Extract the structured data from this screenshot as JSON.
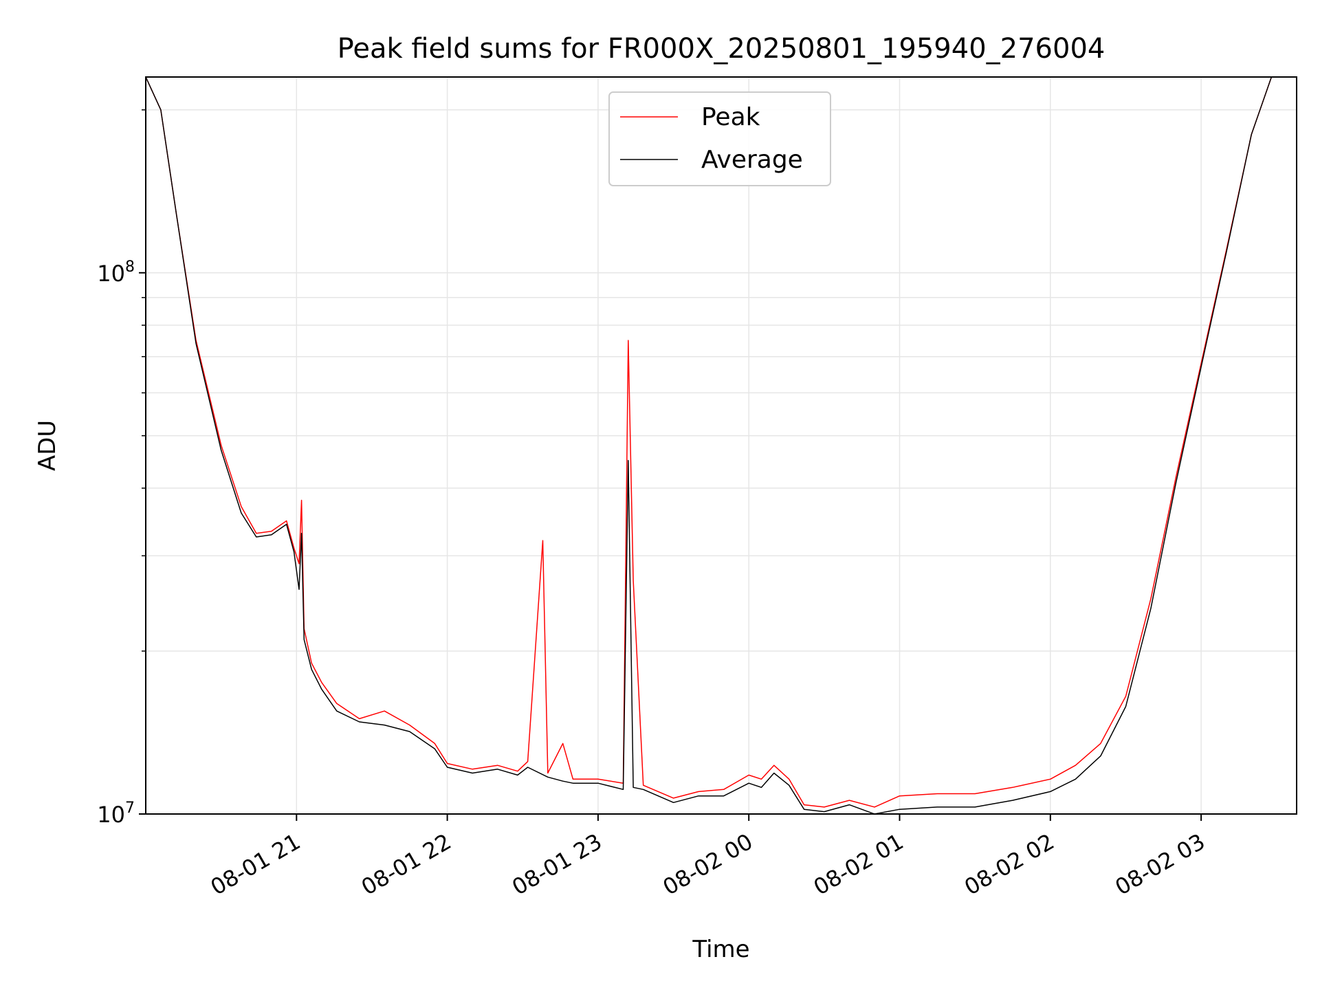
{
  "chart_data": {
    "type": "line",
    "title": "Peak field sums for FR000X_20250801_195940_276004",
    "xlabel": "Time",
    "ylabel": "ADU",
    "yscale": "log",
    "ylim": [
      10000000,
      230000000
    ],
    "xlim": [
      "2025-08-01T20:00:00",
      "2025-08-02T03:38:00"
    ],
    "grid": true,
    "legend": "upper center",
    "x_ticks": [
      "08-01 21",
      "08-01 22",
      "08-01 23",
      "08-02 00",
      "08-02 01",
      "08-02 02",
      "08-02 03"
    ],
    "y_ticks": [
      {
        "value": 10000000,
        "base": "10",
        "exp": "7"
      },
      {
        "value": 100000000,
        "base": "10",
        "exp": "8"
      }
    ],
    "series": [
      {
        "name": "Peak",
        "color": "#ff0000",
        "points": [
          [
            "2025-08-01T20:00:00",
            230000000
          ],
          [
            "2025-08-01T20:06:00",
            200000000
          ],
          [
            "2025-08-01T20:12:00",
            130000000
          ],
          [
            "2025-08-01T20:20:00",
            75000000
          ],
          [
            "2025-08-01T20:30:00",
            48000000
          ],
          [
            "2025-08-01T20:38:00",
            37000000
          ],
          [
            "2025-08-01T20:44:00",
            33000000
          ],
          [
            "2025-08-01T20:50:00",
            33300000
          ],
          [
            "2025-08-01T20:56:00",
            34800000
          ],
          [
            "2025-08-01T20:59:00",
            31000000
          ],
          [
            "2025-08-01T21:01:00",
            29000000
          ],
          [
            "2025-08-01T21:02:00",
            38000000
          ],
          [
            "2025-08-01T21:03:00",
            22000000
          ],
          [
            "2025-08-01T21:06:00",
            19000000
          ],
          [
            "2025-08-01T21:10:00",
            17500000
          ],
          [
            "2025-08-01T21:16:00",
            16000000
          ],
          [
            "2025-08-01T21:25:00",
            15000000
          ],
          [
            "2025-08-01T21:35:00",
            15500000
          ],
          [
            "2025-08-01T21:45:00",
            14600000
          ],
          [
            "2025-08-01T21:55:00",
            13500000
          ],
          [
            "2025-08-01T22:00:00",
            12400000
          ],
          [
            "2025-08-01T22:10:00",
            12100000
          ],
          [
            "2025-08-01T22:20:00",
            12300000
          ],
          [
            "2025-08-01T22:28:00",
            12000000
          ],
          [
            "2025-08-01T22:32:00",
            12500000
          ],
          [
            "2025-08-01T22:38:00",
            32000000
          ],
          [
            "2025-08-01T22:40:00",
            11900000
          ],
          [
            "2025-08-01T22:46:00",
            13500000
          ],
          [
            "2025-08-01T22:50:00",
            11600000
          ],
          [
            "2025-08-01T23:00:00",
            11600000
          ],
          [
            "2025-08-01T23:10:00",
            11400000
          ],
          [
            "2025-08-01T23:12:00",
            75000000
          ],
          [
            "2025-08-01T23:14:00",
            27000000
          ],
          [
            "2025-08-01T23:18:00",
            11300000
          ],
          [
            "2025-08-01T23:30:00",
            10700000
          ],
          [
            "2025-08-01T23:40:00",
            11000000
          ],
          [
            "2025-08-01T23:50:00",
            11100000
          ],
          [
            "2025-08-02T00:00:00",
            11800000
          ],
          [
            "2025-08-02T00:05:00",
            11600000
          ],
          [
            "2025-08-02T00:10:00",
            12300000
          ],
          [
            "2025-08-02T00:16:00",
            11600000
          ],
          [
            "2025-08-02T00:22:00",
            10400000
          ],
          [
            "2025-08-02T00:30:00",
            10300000
          ],
          [
            "2025-08-02T00:40:00",
            10600000
          ],
          [
            "2025-08-02T00:50:00",
            10300000
          ],
          [
            "2025-08-02T01:00:00",
            10800000
          ],
          [
            "2025-08-02T01:15:00",
            10900000
          ],
          [
            "2025-08-02T01:30:00",
            10900000
          ],
          [
            "2025-08-02T01:45:00",
            11200000
          ],
          [
            "2025-08-02T02:00:00",
            11600000
          ],
          [
            "2025-08-02T02:10:00",
            12300000
          ],
          [
            "2025-08-02T02:20:00",
            13500000
          ],
          [
            "2025-08-02T02:30:00",
            16500000
          ],
          [
            "2025-08-02T02:40:00",
            25000000
          ],
          [
            "2025-08-02T02:50:00",
            42000000
          ],
          [
            "2025-08-02T03:00:00",
            68000000
          ],
          [
            "2025-08-02T03:10:00",
            110000000
          ],
          [
            "2025-08-02T03:20:00",
            180000000
          ],
          [
            "2025-08-02T03:28:00",
            230000000
          ],
          [
            "2025-08-02T03:38:00",
            230000000
          ]
        ]
      },
      {
        "name": "Average",
        "color": "#000000",
        "points": [
          [
            "2025-08-01T20:00:00",
            230000000
          ],
          [
            "2025-08-01T20:06:00",
            200000000
          ],
          [
            "2025-08-01T20:12:00",
            130000000
          ],
          [
            "2025-08-01T20:20:00",
            74000000
          ],
          [
            "2025-08-01T20:30:00",
            47000000
          ],
          [
            "2025-08-01T20:38:00",
            36000000
          ],
          [
            "2025-08-01T20:44:00",
            32500000
          ],
          [
            "2025-08-01T20:50:00",
            32800000
          ],
          [
            "2025-08-01T20:56:00",
            34300000
          ],
          [
            "2025-08-01T20:59:00",
            30500000
          ],
          [
            "2025-08-01T21:01:00",
            26000000
          ],
          [
            "2025-08-01T21:02:00",
            33000000
          ],
          [
            "2025-08-01T21:03:00",
            21000000
          ],
          [
            "2025-08-01T21:06:00",
            18500000
          ],
          [
            "2025-08-01T21:10:00",
            17000000
          ],
          [
            "2025-08-01T21:16:00",
            15500000
          ],
          [
            "2025-08-01T21:25:00",
            14800000
          ],
          [
            "2025-08-01T21:35:00",
            14600000
          ],
          [
            "2025-08-01T21:45:00",
            14200000
          ],
          [
            "2025-08-01T21:55:00",
            13200000
          ],
          [
            "2025-08-01T22:00:00",
            12200000
          ],
          [
            "2025-08-01T22:10:00",
            11900000
          ],
          [
            "2025-08-01T22:20:00",
            12100000
          ],
          [
            "2025-08-01T22:28:00",
            11800000
          ],
          [
            "2025-08-01T22:32:00",
            12200000
          ],
          [
            "2025-08-01T22:40:00",
            11700000
          ],
          [
            "2025-08-01T22:46:00",
            11500000
          ],
          [
            "2025-08-01T22:50:00",
            11400000
          ],
          [
            "2025-08-01T23:00:00",
            11400000
          ],
          [
            "2025-08-01T23:10:00",
            11100000
          ],
          [
            "2025-08-01T23:12:00",
            45000000
          ],
          [
            "2025-08-01T23:14:00",
            11200000
          ],
          [
            "2025-08-01T23:18:00",
            11100000
          ],
          [
            "2025-08-01T23:30:00",
            10500000
          ],
          [
            "2025-08-01T23:40:00",
            10800000
          ],
          [
            "2025-08-01T23:50:00",
            10800000
          ],
          [
            "2025-08-02T00:00:00",
            11400000
          ],
          [
            "2025-08-02T00:05:00",
            11200000
          ],
          [
            "2025-08-02T00:10:00",
            11900000
          ],
          [
            "2025-08-02T00:16:00",
            11300000
          ],
          [
            "2025-08-02T00:22:00",
            10200000
          ],
          [
            "2025-08-02T00:30:00",
            10100000
          ],
          [
            "2025-08-02T00:40:00",
            10400000
          ],
          [
            "2025-08-02T00:50:00",
            10000000
          ],
          [
            "2025-08-02T01:00:00",
            10200000
          ],
          [
            "2025-08-02T01:15:00",
            10300000
          ],
          [
            "2025-08-02T01:30:00",
            10300000
          ],
          [
            "2025-08-02T01:45:00",
            10600000
          ],
          [
            "2025-08-02T02:00:00",
            11000000
          ],
          [
            "2025-08-02T02:10:00",
            11600000
          ],
          [
            "2025-08-02T02:20:00",
            12800000
          ],
          [
            "2025-08-02T02:30:00",
            15800000
          ],
          [
            "2025-08-02T02:40:00",
            24000000
          ],
          [
            "2025-08-02T02:50:00",
            41000000
          ],
          [
            "2025-08-02T03:00:00",
            67000000
          ],
          [
            "2025-08-02T03:10:00",
            109000000
          ],
          [
            "2025-08-02T03:20:00",
            180000000
          ],
          [
            "2025-08-02T03:28:00",
            230000000
          ],
          [
            "2025-08-02T03:38:00",
            230000000
          ]
        ]
      }
    ]
  }
}
